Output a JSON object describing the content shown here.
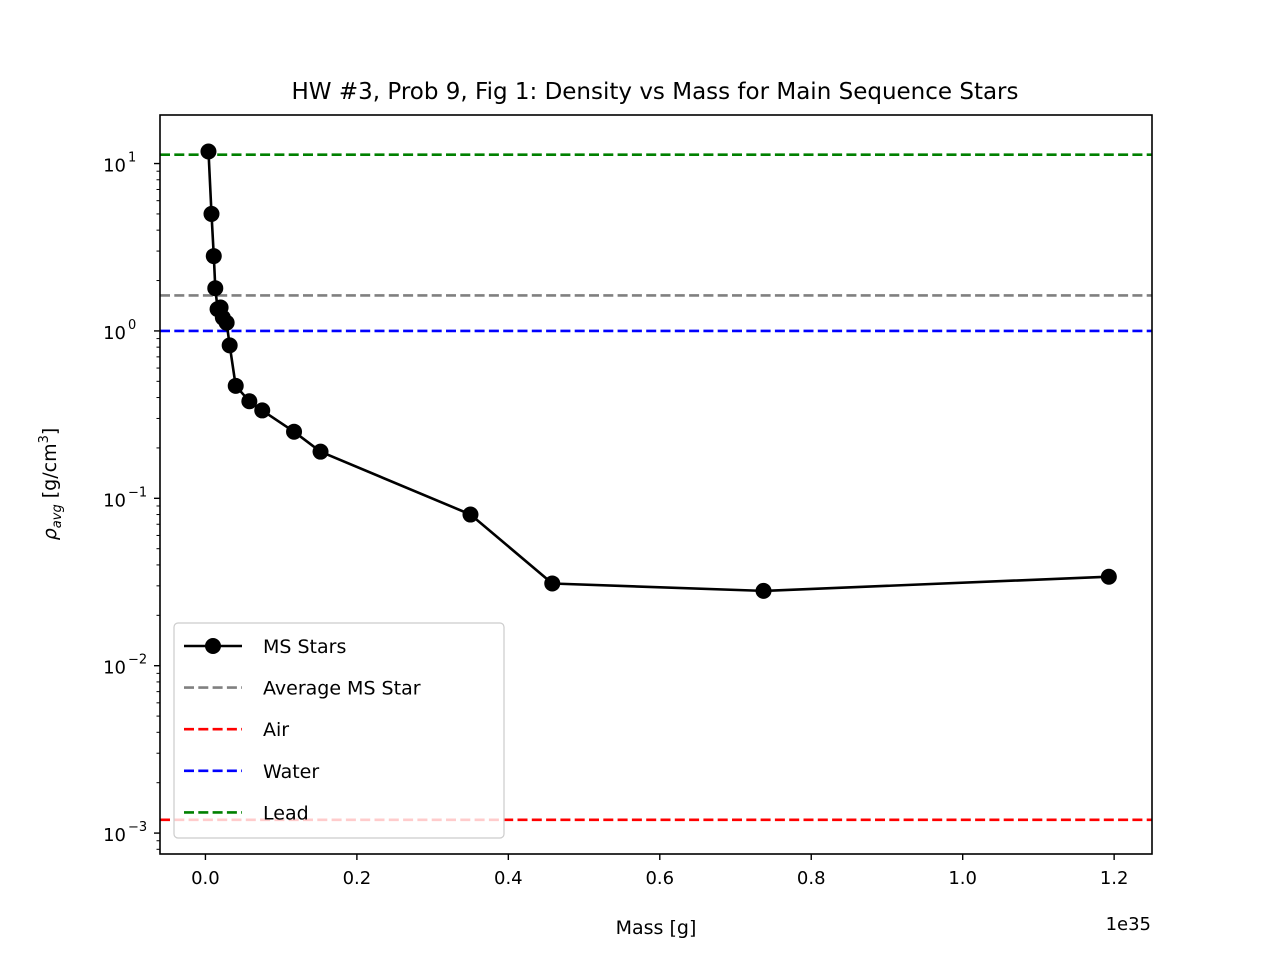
{
  "chart_data": {
    "type": "line",
    "title": "HW #3, Prob 9, Fig 1: Density vs Mass for Main Sequence Stars",
    "xlabel": "Mass [g]",
    "ylabel": {
      "rho": "ρ",
      "sub": "avg",
      "unit_open": " [g/cm",
      "unit_sup": "3",
      "unit_close": "]"
    },
    "x_offset_label": "1e35",
    "xscale": "linear",
    "yscale": "log",
    "xlim": [
      -0.06,
      1.25
    ],
    "ylim": [
      0.00075,
      19.5
    ],
    "grid": false,
    "legend_location": "lower-left",
    "x_ticks": [
      {
        "value": 0.0,
        "label": "0.0"
      },
      {
        "value": 0.2,
        "label": "0.2"
      },
      {
        "value": 0.4,
        "label": "0.4"
      },
      {
        "value": 0.6,
        "label": "0.6"
      },
      {
        "value": 0.8,
        "label": "0.8"
      },
      {
        "value": 1.0,
        "label": "1.0"
      },
      {
        "value": 1.2,
        "label": "1.2"
      }
    ],
    "y_ticks": [
      {
        "value": 0.001,
        "base": "10",
        "exp": "−3"
      },
      {
        "value": 0.01,
        "base": "10",
        "exp": "−2"
      },
      {
        "value": 0.1,
        "base": "10",
        "exp": "−1"
      },
      {
        "value": 1,
        "base": "10",
        "exp": "0"
      },
      {
        "value": 10,
        "base": "10",
        "exp": "1"
      }
    ],
    "series": [
      {
        "name": "MS Stars",
        "color": "#000000",
        "style": "solid-marker",
        "x": [
          0.004,
          0.008,
          0.011,
          0.013,
          0.016,
          0.02,
          0.023,
          0.028,
          0.032,
          0.04,
          0.058,
          0.075,
          0.117,
          0.152,
          0.35,
          0.458,
          0.737,
          1.193
        ],
        "y": [
          11.8,
          5.0,
          2.8,
          1.8,
          1.35,
          1.38,
          1.2,
          1.12,
          0.82,
          0.47,
          0.38,
          0.335,
          0.25,
          0.19,
          0.08,
          0.031,
          0.028,
          0.034
        ]
      }
    ],
    "reference_lines": [
      {
        "name": "Average MS Star",
        "value": 1.63,
        "color": "#808080"
      },
      {
        "name": "Air",
        "value": 0.0012,
        "color": "#ff0000"
      },
      {
        "name": "Water",
        "value": 1.0,
        "color": "#0000ff"
      },
      {
        "name": "Lead",
        "value": 11.3,
        "color": "#008000"
      }
    ]
  }
}
